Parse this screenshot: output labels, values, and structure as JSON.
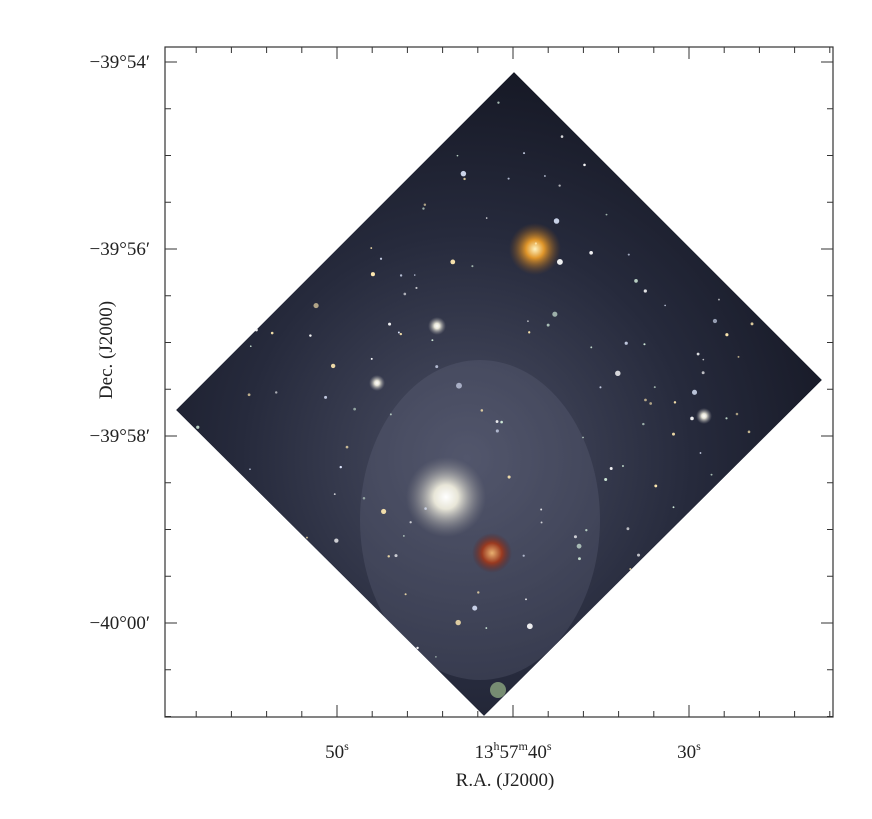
{
  "figure": {
    "x_label": "R.A. (J2000)",
    "y_label": "Dec. (J2000)",
    "x_ticks": [
      {
        "parts": [
          "50",
          "s"
        ]
      },
      {
        "parts": [
          "13",
          "h",
          "57",
          "m",
          "40",
          "s"
        ]
      },
      {
        "parts": [
          "30",
          "s"
        ]
      }
    ],
    "y_ticks": [
      "−39°54′",
      "−39°56′",
      "−39°58′",
      "−40°00′"
    ]
  }
}
